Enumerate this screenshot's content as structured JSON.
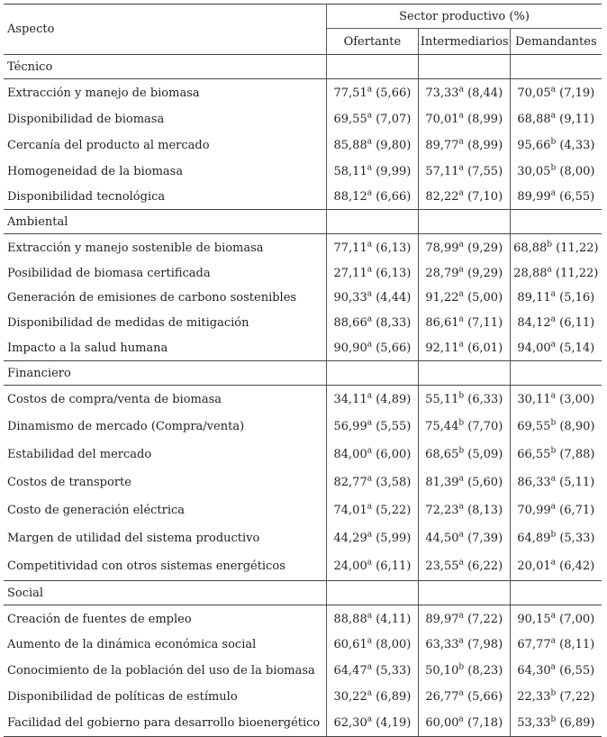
{
  "header": {
    "aspect_label": "Aspecto",
    "group_label": "Sector productivo (%)",
    "columns": [
      "Ofertante",
      "Intermediarios",
      "Demandantes"
    ]
  },
  "sections": [
    {
      "name": "Técnico",
      "rows": [
        {
          "label": "Extracción y manejo de biomasa",
          "cells": [
            {
              "v": "77,51",
              "s": "a",
              "sd": "(5,66)"
            },
            {
              "v": "73,33",
              "s": "a",
              "sd": "(8,44)"
            },
            {
              "v": "70,05",
              "s": "a",
              "sd": "(7,19)"
            }
          ]
        },
        {
          "label": "Disponibilidad de biomasa",
          "cells": [
            {
              "v": "69,55",
              "s": "a",
              "sd": "(7,07)"
            },
            {
              "v": "70,01",
              "s": "a",
              "sd": "(8,99)"
            },
            {
              "v": "68,88",
              "s": "a",
              "sd": "(9,11)"
            }
          ]
        },
        {
          "label": "Cercanía del producto al mercado",
          "cells": [
            {
              "v": "85,88",
              "s": "a",
              "sd": "(9,80)"
            },
            {
              "v": "89,77",
              "s": "a",
              "sd": "(8,99)"
            },
            {
              "v": "95,66",
              "s": "b",
              "sd": "(4,33)"
            }
          ]
        },
        {
          "label": "Homogeneidad de la biomasa",
          "cells": [
            {
              "v": "58,11",
              "s": "a",
              "sd": "(9,99)"
            },
            {
              "v": "57,11",
              "s": "a",
              "sd": "(7,55)"
            },
            {
              "v": "30,05",
              "s": "b",
              "sd": "(8,00)"
            }
          ]
        },
        {
          "label": "Disponibilidad tecnológica",
          "cells": [
            {
              "v": "88,12",
              "s": "a",
              "sd": "(6,66)"
            },
            {
              "v": "82,22",
              "s": "a",
              "sd": "(7,10)"
            },
            {
              "v": "89,99",
              "s": "a",
              "sd": "(6,55)"
            }
          ]
        }
      ]
    },
    {
      "name": "Ambiental",
      "rows": [
        {
          "label": "Extracción y manejo sostenible de biomasa",
          "cells": [
            {
              "v": "77,11",
              "s": "a",
              "sd": "(6,13)"
            },
            {
              "v": "78,99",
              "s": "a",
              "sd": "(9,29)"
            },
            {
              "v": "68,88",
              "s": "b",
              "sd": "(11,22)"
            }
          ]
        },
        {
          "label": "Posibilidad de biomasa certificada",
          "cells": [
            {
              "v": "27,11",
              "s": "a",
              "sd": "(6,13)"
            },
            {
              "v": "28,79",
              "s": "a",
              "sd": "(9,29)"
            },
            {
              "v": "28,88",
              "s": "a",
              "sd": "(11,22)"
            }
          ]
        },
        {
          "label": "Generación de emisiones de carbono sostenibles",
          "cells": [
            {
              "v": "90,33",
              "s": "a",
              "sd": "(4,44)"
            },
            {
              "v": "91,22",
              "s": "a",
              "sd": "(5,00)"
            },
            {
              "v": "89,11",
              "s": "a",
              "sd": "(5,16)"
            }
          ]
        },
        {
          "label": "Disponibilidad de medidas de mitigación",
          "cells": [
            {
              "v": "88,66",
              "s": "a",
              "sd": "(8,33)"
            },
            {
              "v": "86,61",
              "s": "a",
              "sd": "(7,11)"
            },
            {
              "v": "84,12",
              "s": "a",
              "sd": "(6,11)"
            }
          ]
        },
        {
          "label": "Impacto a la salud humana",
          "cells": [
            {
              "v": "90,90",
              "s": "a",
              "sd": "(5,66)"
            },
            {
              "v": "92,11",
              "s": "a",
              "sd": "(6,01)"
            },
            {
              "v": "94,00",
              "s": "a",
              "sd": "(5,14)"
            }
          ]
        }
      ]
    },
    {
      "name": "Financiero",
      "rows": [
        {
          "label": "Costos de compra/venta de biomasa",
          "cells": [
            {
              "v": "34,11",
              "s": "a",
              "sd": "(4,89)"
            },
            {
              "v": "55,11",
              "s": "b",
              "sd": "(6,33)"
            },
            {
              "v": "30,11",
              "s": "a",
              "sd": "(3,00)"
            }
          ]
        },
        {
          "label": "Dinamismo de mercado (Compra/venta)",
          "cells": [
            {
              "v": "56,99",
              "s": "a",
              "sd": "(5,55)"
            },
            {
              "v": "75,44",
              "s": "b",
              "sd": "(7,70)"
            },
            {
              "v": "69,55",
              "s": "b",
              "sd": "(8,90)"
            }
          ]
        },
        {
          "label": "Estabilidad del mercado",
          "cells": [
            {
              "v": "84,00",
              "s": "a",
              "sd": "(6,00)"
            },
            {
              "v": "68,65",
              "s": "b",
              "sd": "(5,09)"
            },
            {
              "v": "66,55",
              "s": "b",
              "sd": "(7,88)"
            }
          ]
        },
        {
          "label": "Costos de transporte",
          "cells": [
            {
              "v": "82,77",
              "s": "a",
              "sd": "(3,58)"
            },
            {
              "v": "81,39",
              "s": "a",
              "sd": "(5,60)"
            },
            {
              "v": "86,33",
              "s": "a",
              "sd": "(5,11)"
            }
          ]
        },
        {
          "label": "Costo de generación eléctrica",
          "cells": [
            {
              "v": "74,01",
              "s": "a",
              "sd": "(5,22)"
            },
            {
              "v": "72,23",
              "s": "a",
              "sd": "(8,13)"
            },
            {
              "v": "70,99",
              "s": "a",
              "sd": "(6,71)"
            }
          ]
        },
        {
          "label": "Margen de utilidad del sistema productivo",
          "cells": [
            {
              "v": "44,29",
              "s": "a",
              "sd": "(5,99)"
            },
            {
              "v": "44,50",
              "s": "a",
              "sd": "(7,39)"
            },
            {
              "v": "64,89",
              "s": "b",
              "sd": "(5,33)"
            }
          ]
        },
        {
          "label": "Competitividad con otros sistemas energéticos",
          "cells": [
            {
              "v": "24,00",
              "s": "a",
              "sd": "(6,11)"
            },
            {
              "v": "23,55",
              "s": "a",
              "sd": "(6,22)"
            },
            {
              "v": "20,01",
              "s": "a",
              "sd": "(6,42)"
            }
          ]
        }
      ]
    },
    {
      "name": "Social",
      "rows": [
        {
          "label": "Creación de fuentes de empleo",
          "cells": [
            {
              "v": "88,88",
              "s": "a",
              "sd": "(4,11)"
            },
            {
              "v": "89,97",
              "s": "a",
              "sd": "(7,22)"
            },
            {
              "v": "90,15",
              "s": "a",
              "sd": "(7,00)"
            }
          ]
        },
        {
          "label": "Aumento de la dinámica económica social",
          "cells": [
            {
              "v": "60,61",
              "s": "a",
              "sd": "(8,00)"
            },
            {
              "v": "63,33",
              "s": "a",
              "sd": "(7,98)"
            },
            {
              "v": "67,77",
              "s": "a",
              "sd": "(8,11)"
            }
          ]
        },
        {
          "label": "Conocimiento de la población del uso de la biomasa",
          "cells": [
            {
              "v": "64,47",
              "s": "a",
              "sd": "(5,33)"
            },
            {
              "v": "50,10",
              "s": "b",
              "sd": "(8,23)"
            },
            {
              "v": "64,30",
              "s": "a",
              "sd": "(6,55)"
            }
          ]
        },
        {
          "label": "Disponibilidad de políticas de estímulo",
          "cells": [
            {
              "v": "30,22",
              "s": "a",
              "sd": "(6,89)"
            },
            {
              "v": "26,77",
              "s": "a",
              "sd": "(5,66)"
            },
            {
              "v": "22,33",
              "s": "b",
              "sd": "(7,22)"
            }
          ]
        },
        {
          "label": "Facilidad del gobierno para desarrollo bioenergético",
          "cells": [
            {
              "v": "62,30",
              "s": "a",
              "sd": "(4,19)"
            },
            {
              "v": "60,00",
              "s": "a",
              "sd": "(7,18)"
            },
            {
              "v": "53,33",
              "s": "b",
              "sd": "(6,89)"
            }
          ]
        }
      ]
    }
  ]
}
